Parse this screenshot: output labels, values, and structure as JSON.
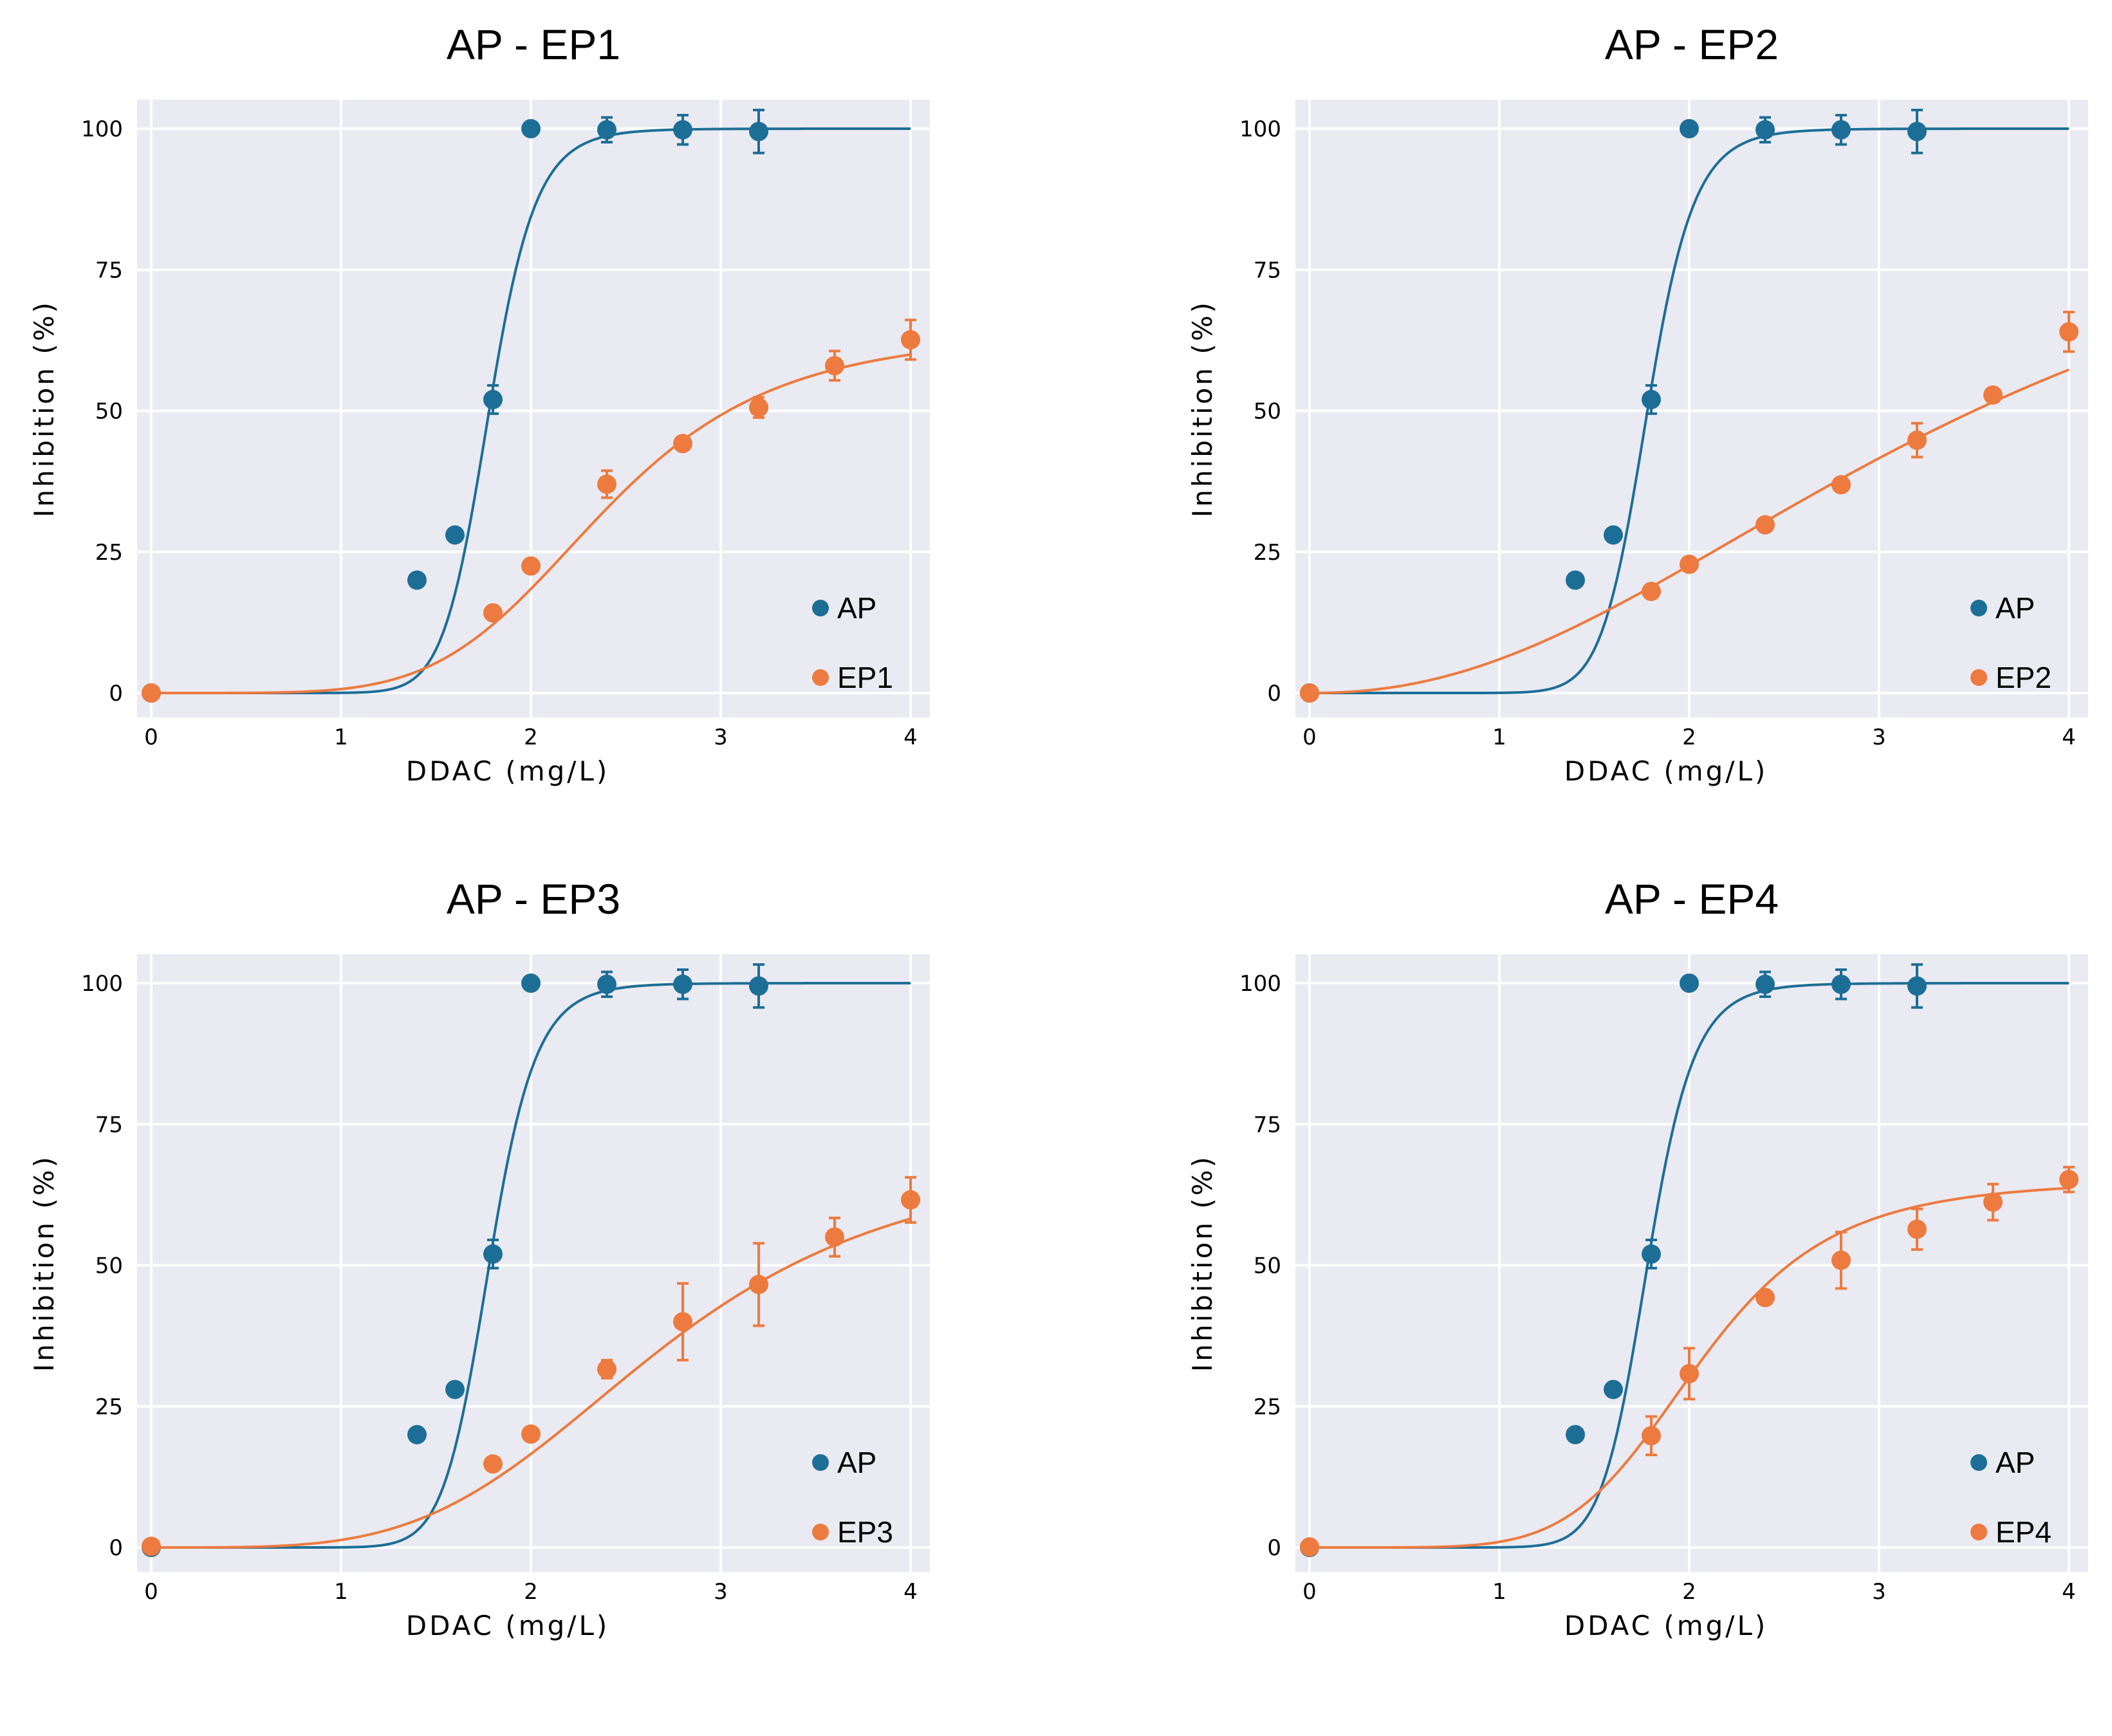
{
  "colors": {
    "ap": "#1d6e96",
    "ep": "#ed7a3e",
    "plot_background": "#eaeaf2",
    "grid": "#ffffff"
  },
  "chart_data": [
    {
      "type": "scatter",
      "title": "AP - EP1",
      "xlabel": "DDAC (mg/L)",
      "ylabel": "Inhibition (%)",
      "xlim": [
        0,
        4
      ],
      "ylim": [
        0,
        100
      ],
      "xticks": [
        "0",
        "1",
        "2",
        "3",
        "4"
      ],
      "yticks": [
        "0",
        "25",
        "50",
        "75",
        "100"
      ],
      "grid": true,
      "legend_position": "lower-right",
      "series": [
        {
          "name": "AP",
          "color": "#1d6e96",
          "x": [
            0,
            1.4,
            1.6,
            1.8,
            2.0,
            2.4,
            2.8,
            3.2
          ],
          "y": [
            0,
            20,
            28,
            52,
            100,
            99.8,
            99.8,
            99.5
          ],
          "err": [
            0,
            0,
            0,
            2.5,
            0,
            2.2,
            2.6,
            3.8
          ],
          "fit": {
            "top": 100,
            "ec50": 1.78,
            "hill": 14.5,
            "bottom": 0
          }
        },
        {
          "name": "EP1",
          "color": "#ed7a3e",
          "x": [
            0,
            1.8,
            2.0,
            2.4,
            2.8,
            3.2,
            3.6,
            4.0
          ],
          "y": [
            0,
            14.2,
            22.5,
            37,
            44.2,
            50.6,
            58,
            62.6
          ],
          "err": [
            0,
            0,
            0,
            2.4,
            0,
            1.8,
            2.6,
            3.5
          ],
          "fit": {
            "top": 64,
            "ec50": 2.38,
            "hill": 5.2,
            "bottom": 0
          }
        }
      ]
    },
    {
      "type": "scatter",
      "title": "AP - EP2",
      "xlabel": "DDAC (mg/L)",
      "ylabel": "Inhibition (%)",
      "xlim": [
        0,
        4
      ],
      "ylim": [
        0,
        100
      ],
      "xticks": [
        "0",
        "1",
        "2",
        "3",
        "4"
      ],
      "yticks": [
        "0",
        "25",
        "50",
        "75",
        "100"
      ],
      "grid": true,
      "legend_position": "lower-right",
      "series": [
        {
          "name": "AP",
          "color": "#1d6e96",
          "x": [
            0,
            1.4,
            1.6,
            1.8,
            2.0,
            2.4,
            2.8,
            3.2
          ],
          "y": [
            0,
            20,
            28,
            52,
            100,
            99.8,
            99.8,
            99.5
          ],
          "err": [
            0,
            0,
            0,
            2.5,
            0,
            2.2,
            2.6,
            3.8
          ],
          "fit": {
            "top": 100,
            "ec50": 1.78,
            "hill": 14.5,
            "bottom": 0
          }
        },
        {
          "name": "EP2",
          "color": "#ed7a3e",
          "x": [
            0,
            1.8,
            2.0,
            2.4,
            2.8,
            3.2,
            3.6,
            4.0
          ],
          "y": [
            0,
            18,
            22.8,
            29.8,
            36.9,
            44.8,
            52.8,
            64
          ],
          "err": [
            0,
            0,
            0,
            0,
            0,
            3.0,
            0,
            3.5
          ],
          "fit": {
            "top": 100,
            "ec50": 3.5,
            "hill": 2.2,
            "bottom": 0
          }
        }
      ]
    },
    {
      "type": "scatter",
      "title": "AP - EP3",
      "xlabel": "DDAC (mg/L)",
      "ylabel": "Inhibition (%)",
      "xlim": [
        0,
        4
      ],
      "ylim": [
        0,
        100
      ],
      "xticks": [
        "0",
        "1",
        "2",
        "3",
        "4"
      ],
      "yticks": [
        "0",
        "25",
        "50",
        "75",
        "100"
      ],
      "grid": true,
      "legend_position": "lower-right",
      "series": [
        {
          "name": "AP",
          "color": "#1d6e96",
          "x": [
            0,
            1.4,
            1.6,
            1.8,
            2.0,
            2.4,
            2.8,
            3.2
          ],
          "y": [
            0,
            20,
            28,
            52,
            100,
            99.8,
            99.8,
            99.5
          ],
          "err": [
            0,
            0,
            0,
            2.5,
            0,
            2.2,
            2.6,
            3.8
          ],
          "fit": {
            "top": 100,
            "ec50": 1.78,
            "hill": 14.5,
            "bottom": 0
          }
        },
        {
          "name": "EP3",
          "color": "#ed7a3e",
          "x": [
            0,
            1.8,
            2.0,
            2.4,
            2.8,
            3.2,
            3.6,
            4.0
          ],
          "y": [
            0.2,
            14.8,
            20.1,
            31.6,
            40,
            46.6,
            55,
            61.6
          ],
          "err": [
            0,
            0,
            0,
            1.6,
            6.8,
            7.3,
            3.4,
            4.0
          ],
          "fit": {
            "top": 70,
            "ec50": 2.68,
            "hill": 4.0,
            "bottom": 0
          }
        }
      ]
    },
    {
      "type": "scatter",
      "title": "AP - EP4",
      "xlabel": "DDAC (mg/L)",
      "ylabel": "Inhibition (%)",
      "xlim": [
        0,
        4
      ],
      "ylim": [
        0,
        100
      ],
      "xticks": [
        "0",
        "1",
        "2",
        "3",
        "4"
      ],
      "yticks": [
        "0",
        "25",
        "50",
        "75",
        "100"
      ],
      "grid": true,
      "legend_position": "lower-right",
      "series": [
        {
          "name": "AP",
          "color": "#1d6e96",
          "x": [
            0,
            1.4,
            1.6,
            1.8,
            2.0,
            2.4,
            2.8,
            3.2
          ],
          "y": [
            0,
            20,
            28,
            52,
            100,
            99.8,
            99.8,
            99.5
          ],
          "err": [
            0,
            0,
            0,
            2.5,
            0,
            2.2,
            2.6,
            3.8
          ],
          "fit": {
            "top": 100,
            "ec50": 1.78,
            "hill": 14.5,
            "bottom": 0
          }
        },
        {
          "name": "EP4",
          "color": "#ed7a3e",
          "x": [
            0,
            1.8,
            2.0,
            2.4,
            2.8,
            3.2,
            3.6,
            4.0
          ],
          "y": [
            0.1,
            19.8,
            30.8,
            44.3,
            50.9,
            56.4,
            61.2,
            65.2
          ],
          "err": [
            0,
            3.4,
            4.5,
            0,
            5.0,
            3.6,
            3.2,
            2.2
          ],
          "fit": {
            "top": 65,
            "ec50": 2.05,
            "hill": 5.8,
            "bottom": 0
          }
        }
      ]
    }
  ]
}
